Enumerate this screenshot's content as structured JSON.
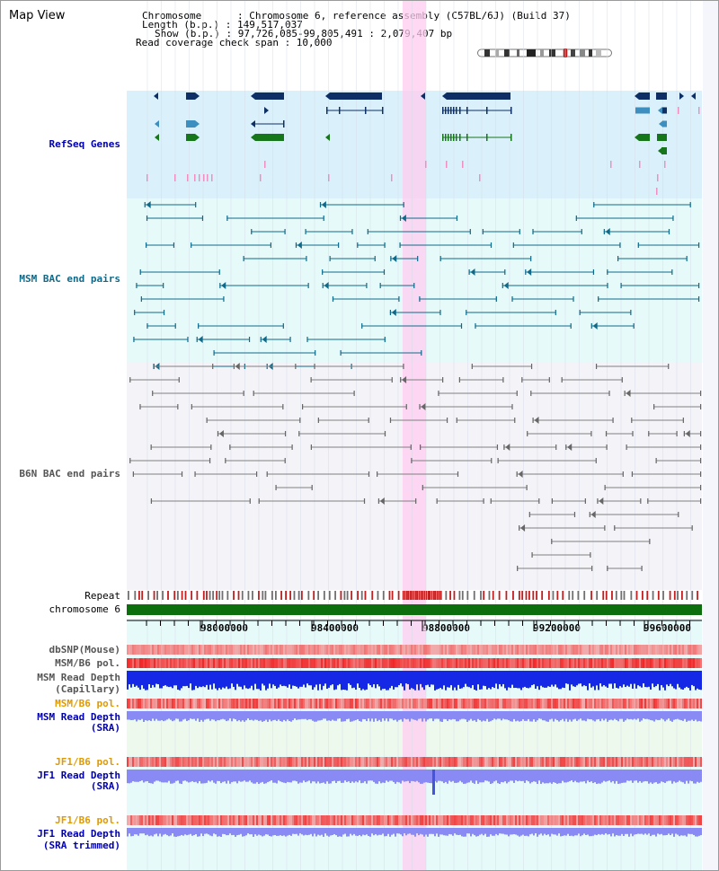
{
  "app_title": "Map View",
  "info": {
    "chromosome": "Chromosome      : Chromosome 6, reference assembly (C57BL/6J) (Build 37)",
    "length": "Length (b.p.) : 149,517,037",
    "show": "Show (b.p.) : 97,726,085-99,805,491 : 2,079,407 bp",
    "coverage": "Read coverage check span : 10,000"
  },
  "tracks": {
    "refseq": "RefSeq Genes",
    "msm_bac": "MSM BAC end pairs",
    "b6n_bac": "B6N BAC end pairs",
    "repeat": "Repeat",
    "chromosome": "chromosome 6",
    "dbsnp": "dbSNP(Mouse)",
    "msm_b6_pol_1": "MSM/B6 pol.",
    "msm_read_depth_cap_1": "MSM Read Depth",
    "msm_read_depth_cap_2": "(Capillary)",
    "msm_b6_pol_2": "MSM/B6 pol.",
    "msm_read_depth_sra_1": "MSM Read Depth",
    "msm_read_depth_sra_2": "(SRA)",
    "jf1_b6_pol_1": "JF1/B6 pol.",
    "jf1_read_depth_1": "JF1 Read Depth",
    "jf1_read_depth_2": "(SRA)",
    "jf1_b6_pol_2": "JF1/B6 pol.",
    "jf1_trim_1": "JF1 Read Depth",
    "jf1_trim_2": "(SRA trimmed)"
  },
  "axis_ticks": [
    "98000000",
    "98400000",
    "98800000",
    "99200000",
    "99600000"
  ],
  "colors": {
    "refseq_bg": "#daf0fb",
    "msm_bg": "#e6fafa",
    "b6n_bg": "#f2f2f7",
    "highlight": "#ffccf0",
    "gene_dark": "#0d2f66",
    "gene_mid": "#3d8fbf",
    "gene_green": "#16761a",
    "msm_line": "#0f6a8a",
    "b6n_line": "#808080",
    "chrom_bar": "#0c6e0c",
    "depth_blue": "#1a33e0",
    "depth_light": "#8c8cf5",
    "label_blue": "#0000b0",
    "label_teal": "#0f6a8a",
    "label_orange": "#e09a00"
  }
}
